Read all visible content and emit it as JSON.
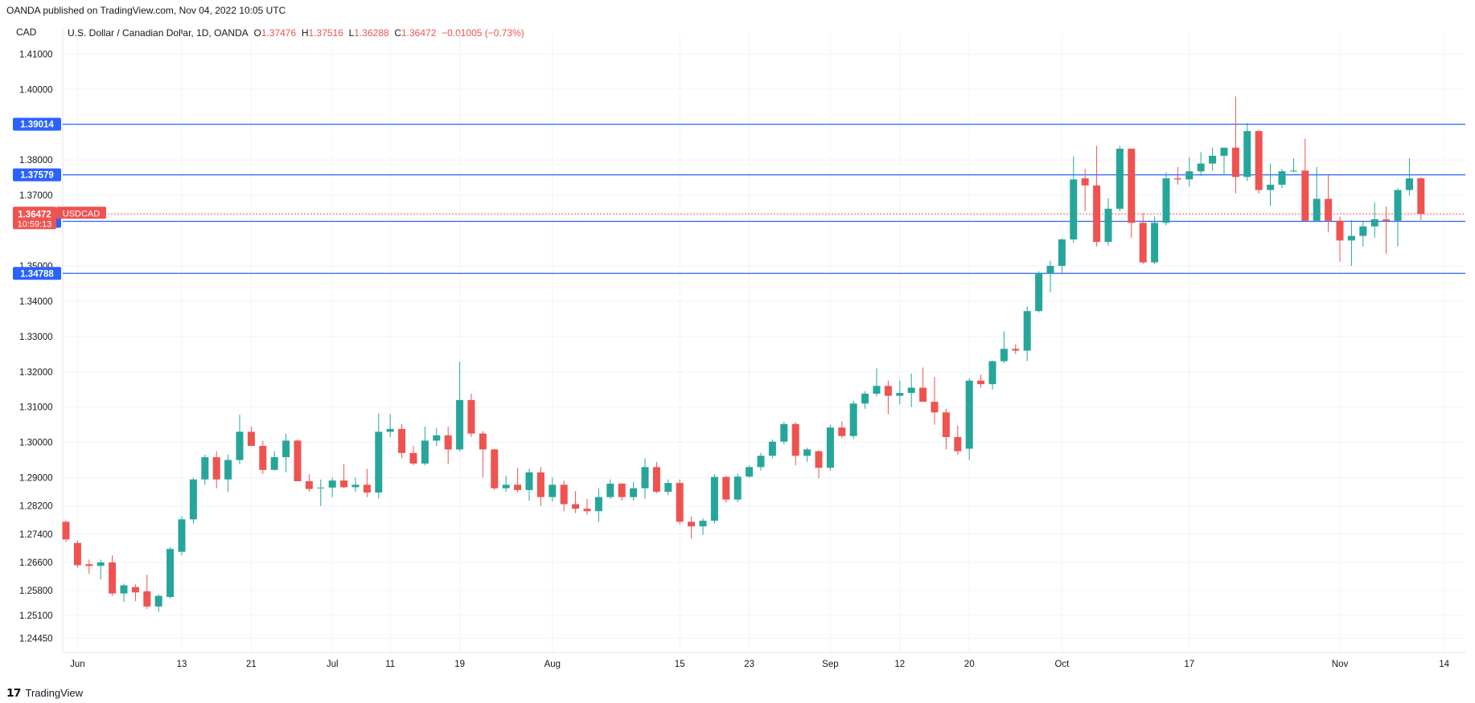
{
  "header": {
    "published": "OANDA published on TradingView.com, Nov 04, 2022 10:05 UTC"
  },
  "footer": {
    "brand": "TradingView",
    "logo": "tv-logo-icon"
  },
  "legend": {
    "currency": "CAD",
    "symbol": "U.S. Dollar / Canadian Dollar, 1D, OANDA",
    "o_label": "O",
    "o": "1.37476",
    "h_label": "H",
    "h": "1.37516",
    "l_label": "L",
    "l": "1.36288",
    "c_label": "C",
    "c": "1.36472",
    "change": "−0.01005 (−0.73%)"
  },
  "colors": {
    "up": "#26a69a",
    "down": "#ef5350",
    "line": "#2962ff",
    "grid": "#f0f3fa",
    "text": "#131722"
  },
  "chart_data": {
    "type": "candlestick",
    "title": "U.S. Dollar / Canadian Dollar, 1D, OANDA",
    "ylabel": "CAD",
    "ylim": [
      1.2405,
      1.4135
    ],
    "y_ticks": [
      "1.41000",
      "1.40000",
      "1.38000",
      "1.37000",
      "1.35000",
      "1.34000",
      "1.33000",
      "1.32000",
      "1.31000",
      "1.30000",
      "1.29000",
      "1.28200",
      "1.27400",
      "1.26600",
      "1.25800",
      "1.25100",
      "1.24450"
    ],
    "x_ticks": [
      {
        "label": "Jun",
        "i": 1
      },
      {
        "label": "13",
        "i": 10
      },
      {
        "label": "21",
        "i": 16
      },
      {
        "label": "Jul",
        "i": 23
      },
      {
        "label": "11",
        "i": 28
      },
      {
        "label": "19",
        "i": 34
      },
      {
        "label": "Aug",
        "i": 42
      },
      {
        "label": "15",
        "i": 53
      },
      {
        "label": "23",
        "i": 59
      },
      {
        "label": "Sep",
        "i": 66
      },
      {
        "label": "12",
        "i": 72
      },
      {
        "label": "20",
        "i": 78
      },
      {
        "label": "Oct",
        "i": 86
      },
      {
        "label": "17",
        "i": 97
      },
      {
        "label": "Nov",
        "i": 110
      },
      {
        "label": "14",
        "i": 119
      }
    ],
    "horizontal_lines": [
      {
        "label": "1.39014",
        "value": 1.39014
      },
      {
        "label": "1.37579",
        "value": 1.37579
      },
      {
        "label": "1.36262",
        "value": 1.36262
      },
      {
        "label": "1.34788",
        "value": 1.34788
      }
    ],
    "last_price": {
      "label": "1.36472",
      "value": 1.36472,
      "countdown": "10:59:13",
      "symbol": "USDCAD"
    },
    "candles": [
      [
        1.2775,
        1.2778,
        1.2718,
        1.2725
      ],
      [
        1.2715,
        1.2722,
        1.2645,
        1.2652
      ],
      [
        1.2655,
        1.2668,
        1.2628,
        1.265
      ],
      [
        1.265,
        1.2668,
        1.2612,
        1.266
      ],
      [
        1.266,
        1.268,
        1.2565,
        1.2572
      ],
      [
        1.2572,
        1.26,
        1.2548,
        1.2595
      ],
      [
        1.259,
        1.2598,
        1.255,
        1.2575
      ],
      [
        1.2578,
        1.2625,
        1.2528,
        1.2535
      ],
      [
        1.2535,
        1.257,
        1.252,
        1.2565
      ],
      [
        1.2562,
        1.2703,
        1.2558,
        1.2698
      ],
      [
        1.269,
        1.279,
        1.268,
        1.2782
      ],
      [
        1.2782,
        1.29,
        1.277,
        1.2895
      ],
      [
        1.2895,
        1.2965,
        1.288,
        1.2958
      ],
      [
        1.2958,
        1.2975,
        1.287,
        1.2895
      ],
      [
        1.2895,
        1.2965,
        1.286,
        1.295
      ],
      [
        1.295,
        1.3078,
        1.2938,
        1.303
      ],
      [
        1.303,
        1.3045,
        1.299,
        1.299
      ],
      [
        1.299,
        1.3005,
        1.291,
        1.2922
      ],
      [
        1.2922,
        1.2975,
        1.292,
        1.2958
      ],
      [
        1.2958,
        1.3025,
        1.2915,
        1.3005
      ],
      [
        1.3005,
        1.3008,
        1.289,
        1.289
      ],
      [
        1.289,
        1.291,
        1.286,
        1.2868
      ],
      [
        1.287,
        1.2895,
        1.282,
        1.2872
      ],
      [
        1.2872,
        1.29,
        1.2845,
        1.2892
      ],
      [
        1.2892,
        1.2938,
        1.287,
        1.2873
      ],
      [
        1.2873,
        1.29,
        1.286,
        1.288
      ],
      [
        1.288,
        1.2925,
        1.2845,
        1.2858
      ],
      [
        1.2858,
        1.3082,
        1.284,
        1.303
      ],
      [
        1.303,
        1.308,
        1.3015,
        1.3038
      ],
      [
        1.3038,
        1.3052,
        1.2955,
        1.297
      ],
      [
        1.297,
        1.299,
        1.2935,
        1.294
      ],
      [
        1.294,
        1.3045,
        1.2935,
        1.3005
      ],
      [
        1.3005,
        1.304,
        1.299,
        1.302
      ],
      [
        1.302,
        1.3045,
        1.2938,
        1.298
      ],
      [
        1.298,
        1.3228,
        1.2975,
        1.312
      ],
      [
        1.312,
        1.3138,
        1.3015,
        1.3025
      ],
      [
        1.3025,
        1.3032,
        1.29,
        1.298
      ],
      [
        1.298,
        1.2982,
        1.2865,
        1.287
      ],
      [
        1.287,
        1.2905,
        1.286,
        1.288
      ],
      [
        1.288,
        1.2928,
        1.2858,
        1.2865
      ],
      [
        1.2865,
        1.2925,
        1.2835,
        1.2915
      ],
      [
        1.2915,
        1.293,
        1.282,
        1.2845
      ],
      [
        1.2845,
        1.29,
        1.2832,
        1.288
      ],
      [
        1.288,
        1.2892,
        1.2805,
        1.2825
      ],
      [
        1.2825,
        1.2862,
        1.28,
        1.2812
      ],
      [
        1.2812,
        1.284,
        1.2795,
        1.2805
      ],
      [
        1.2805,
        1.287,
        1.2775,
        1.2845
      ],
      [
        1.2845,
        1.2895,
        1.284,
        1.2883
      ],
      [
        1.2883,
        1.2885,
        1.2835,
        1.2845
      ],
      [
        1.2845,
        1.2888,
        1.2835,
        1.287
      ],
      [
        1.287,
        1.2955,
        1.284,
        1.293
      ],
      [
        1.293,
        1.2945,
        1.2855,
        1.286
      ],
      [
        1.286,
        1.2895,
        1.285,
        1.2885
      ],
      [
        1.2885,
        1.2895,
        1.2768,
        1.2775
      ],
      [
        1.2775,
        1.279,
        1.2728,
        1.2762
      ],
      [
        1.2762,
        1.2785,
        1.2738,
        1.2778
      ],
      [
        1.2778,
        1.291,
        1.277,
        1.2902
      ],
      [
        1.2902,
        1.2905,
        1.283,
        1.2838
      ],
      [
        1.2838,
        1.2912,
        1.283,
        1.2903
      ],
      [
        1.2903,
        1.2935,
        1.29,
        1.293
      ],
      [
        1.293,
        1.297,
        1.292,
        1.2962
      ],
      [
        1.2962,
        1.3008,
        1.2955,
        1.3002
      ],
      [
        1.3002,
        1.3058,
        1.2995,
        1.3052
      ],
      [
        1.3052,
        1.3058,
        1.2935,
        1.2962
      ],
      [
        1.2962,
        1.2985,
        1.2945,
        1.298
      ],
      [
        1.2975,
        1.2978,
        1.2898,
        1.2928
      ],
      [
        1.2928,
        1.305,
        1.292,
        1.3042
      ],
      [
        1.3042,
        1.306,
        1.3012,
        1.3018
      ],
      [
        1.3018,
        1.3118,
        1.301,
        1.311
      ],
      [
        1.311,
        1.3145,
        1.3095,
        1.3138
      ],
      [
        1.3138,
        1.321,
        1.313,
        1.316
      ],
      [
        1.316,
        1.3175,
        1.308,
        1.3132
      ],
      [
        1.3132,
        1.3175,
        1.3108,
        1.314
      ],
      [
        1.314,
        1.3195,
        1.31,
        1.3155
      ],
      [
        1.3155,
        1.3212,
        1.312,
        1.3115
      ],
      [
        1.3115,
        1.3185,
        1.305,
        1.3085
      ],
      [
        1.3085,
        1.3095,
        1.298,
        1.3015
      ],
      [
        1.3015,
        1.3048,
        1.2965,
        1.2975
      ],
      [
        1.2982,
        1.3182,
        1.295,
        1.3175
      ],
      [
        1.3175,
        1.3192,
        1.3155,
        1.3165
      ],
      [
        1.3165,
        1.3232,
        1.315,
        1.323
      ],
      [
        1.323,
        1.3315,
        1.3225,
        1.3265
      ],
      [
        1.3265,
        1.3278,
        1.325,
        1.326
      ],
      [
        1.326,
        1.3385,
        1.323,
        1.3372
      ],
      [
        1.3372,
        1.3485,
        1.3368,
        1.3478
      ],
      [
        1.3478,
        1.3515,
        1.3425,
        1.35
      ],
      [
        1.35,
        1.3578,
        1.348,
        1.3575
      ],
      [
        1.3575,
        1.381,
        1.3565,
        1.3745
      ],
      [
        1.3748,
        1.3775,
        1.3655,
        1.3728
      ],
      [
        1.3728,
        1.384,
        1.3555,
        1.3568
      ],
      [
        1.3568,
        1.3692,
        1.3558,
        1.3662
      ],
      [
        1.3662,
        1.384,
        1.3655,
        1.3832
      ],
      [
        1.3832,
        1.3832,
        1.358,
        1.3622
      ],
      [
        1.3622,
        1.365,
        1.3505,
        1.351
      ],
      [
        1.351,
        1.364,
        1.3505,
        1.3622
      ],
      [
        1.3622,
        1.3765,
        1.3615,
        1.3748
      ],
      [
        1.3748,
        1.378,
        1.373,
        1.3745
      ],
      [
        1.3745,
        1.3808,
        1.3725,
        1.3768
      ],
      [
        1.3768,
        1.3822,
        1.3755,
        1.379
      ],
      [
        1.379,
        1.3835,
        1.377,
        1.3812
      ],
      [
        1.3812,
        1.3825,
        1.3758,
        1.3835
      ],
      [
        1.3835,
        1.398,
        1.3705,
        1.3752
      ],
      [
        1.3752,
        1.3905,
        1.374,
        1.3882
      ],
      [
        1.3882,
        1.3885,
        1.3705,
        1.3715
      ],
      [
        1.3715,
        1.379,
        1.367,
        1.373
      ],
      [
        1.373,
        1.3775,
        1.372,
        1.3768
      ],
      [
        1.3768,
        1.3805,
        1.3765,
        1.377
      ],
      [
        1.377,
        1.386,
        1.3632,
        1.3628
      ],
      [
        1.3628,
        1.378,
        1.3625,
        1.369
      ],
      [
        1.369,
        1.3758,
        1.3595,
        1.3628
      ],
      [
        1.3628,
        1.364,
        1.3512,
        1.3572
      ],
      [
        1.3572,
        1.363,
        1.35,
        1.3585
      ],
      [
        1.3585,
        1.3625,
        1.3555,
        1.3612
      ],
      [
        1.3612,
        1.368,
        1.358,
        1.3632
      ],
      [
        1.3632,
        1.3668,
        1.3535,
        1.3628
      ],
      [
        1.3628,
        1.372,
        1.3555,
        1.3715
      ],
      [
        1.3715,
        1.3805,
        1.37,
        1.3748
      ],
      [
        1.3748,
        1.3752,
        1.3629,
        1.3647
      ]
    ]
  }
}
